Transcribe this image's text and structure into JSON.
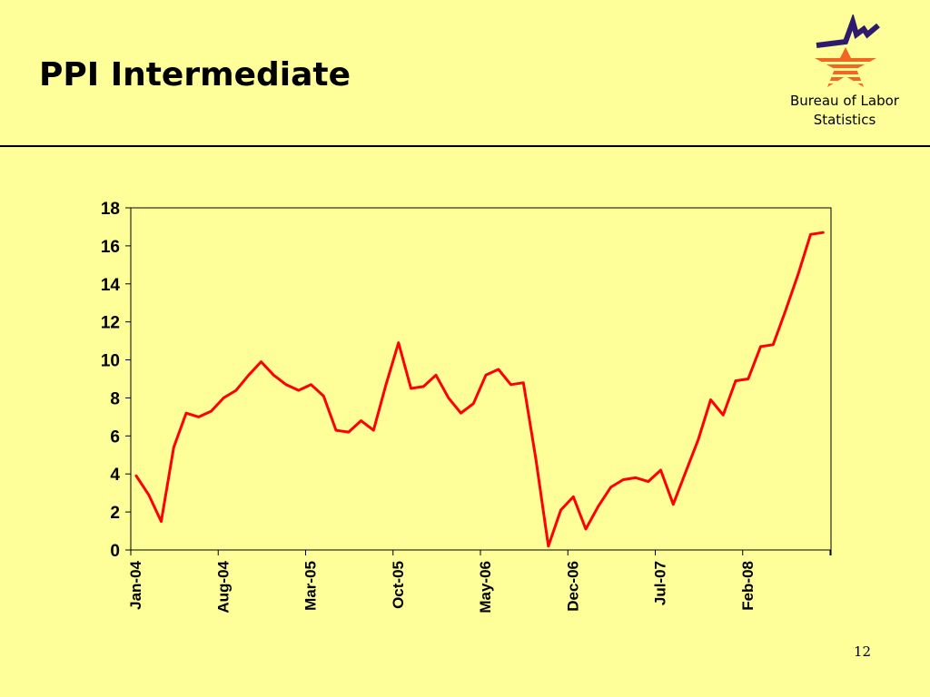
{
  "slide": {
    "title": "PPI Intermediate",
    "org_line1": "Bureau of Labor",
    "org_line2": "Statistics",
    "page_number": "12",
    "logo_icon": "bls-star-logo-icon"
  },
  "colors": {
    "background": "#ffff99",
    "line": "#ff0000",
    "logo_blue": "#2f1b6e",
    "logo_orange": "#f26522"
  },
  "chart_data": {
    "type": "line",
    "title": "",
    "xlabel": "",
    "ylabel": "",
    "ylim": [
      0,
      18
    ],
    "yticks": [
      "0",
      "2",
      "4",
      "6",
      "8",
      "10",
      "12",
      "14",
      "16",
      "18"
    ],
    "xtick_labels": [
      "Jan-04",
      "Aug-04",
      "Mar-05",
      "Oct-05",
      "May-06",
      "Dec-06",
      "Jul-07",
      "Feb-08"
    ],
    "grid": false,
    "series": [
      {
        "values": [
          3.9,
          2.9,
          1.5,
          5.4,
          7.2,
          7.0,
          7.3,
          8.0,
          8.4,
          9.2,
          9.9,
          9.2,
          8.7,
          8.4,
          8.7,
          8.1,
          6.3,
          6.2,
          6.8,
          6.3,
          8.7,
          10.9,
          8.5,
          8.6,
          9.2,
          8.0,
          7.2,
          7.7,
          9.2,
          9.5,
          8.7,
          8.8,
          4.8,
          0.2,
          2.1,
          2.8,
          1.1,
          2.3,
          3.3,
          3.7,
          3.8,
          3.6,
          4.2,
          2.4,
          4.1,
          5.8,
          7.9,
          7.1,
          8.9,
          9.0,
          10.7,
          10.8,
          12.6,
          14.5,
          16.6,
          16.7
        ]
      }
    ]
  }
}
